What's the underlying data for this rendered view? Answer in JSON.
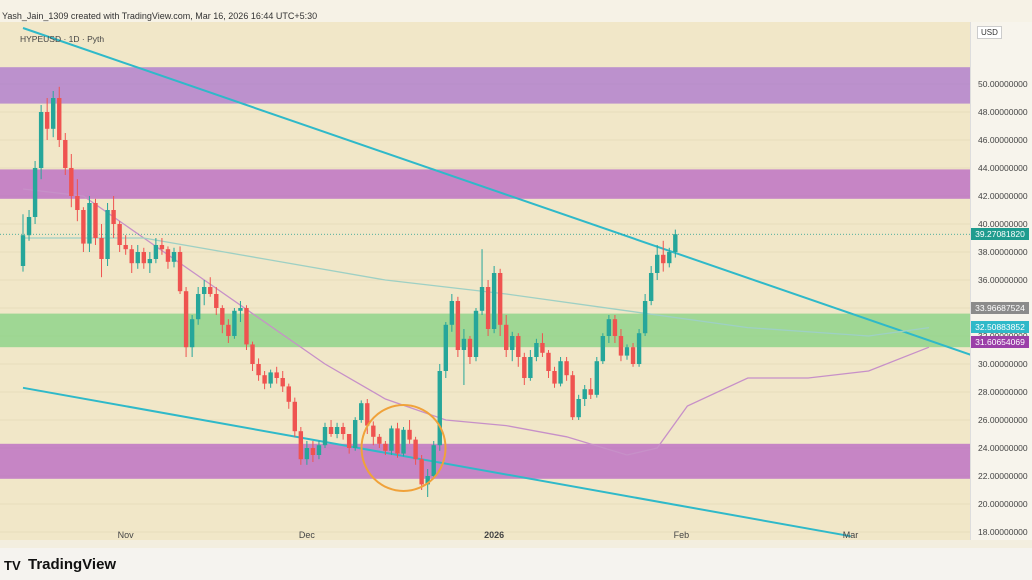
{
  "header": {
    "credit": "Yash_Jain_1309 created with TradingView.com, Mar 16, 2026 16:44 UTC+5:30"
  },
  "symbol": "HYPEUSD · 1D · Pyth",
  "currency": "USD",
  "brand": "TradingView",
  "colors": {
    "bg": "#f1e7c8",
    "up": "#26a69a",
    "down": "#ef5350",
    "purple_zone": "#a770cf",
    "green_zone": "#7fd17f",
    "trend": "#2fb9c9",
    "circle": "#f0a23a"
  },
  "chart_data": {
    "type": "candlestick",
    "title": "",
    "ylim": [
      17,
      52
    ],
    "y_ticks": [
      18,
      20,
      22,
      24,
      26,
      28,
      30,
      32,
      34,
      36,
      38,
      40,
      42,
      44,
      46,
      48,
      50
    ],
    "y_tick_labels": [
      "18.00000000",
      "20.00000000",
      "22.00000000",
      "24.00000000",
      "26.00000000",
      "28.00000000",
      "30.00000000",
      "32.00000000",
      "34.00000000",
      "36.00000000",
      "38.00000000",
      "40.00000000",
      "42.00000000",
      "44.00000000",
      "46.00000000",
      "48.00000000",
      "50.00000000"
    ],
    "x_labels": [
      {
        "label": "Nov",
        "day": 17
      },
      {
        "label": "Dec",
        "day": 47
      },
      {
        "label": "2026",
        "day": 78
      },
      {
        "label": "Feb",
        "day": 109
      },
      {
        "label": "Mar",
        "day": 137
      }
    ],
    "price_tags": [
      {
        "label": "39.27081820",
        "value": 39.27,
        "color": "#1f9c8f"
      },
      {
        "label": "33.96687524",
        "value": 33.97,
        "color": "#8b8b8b"
      },
      {
        "label": "32.50883852",
        "value": 32.51,
        "color": "#2fb9c9"
      },
      {
        "label": "31.60654069",
        "value": 31.61,
        "color": "#9b3fa8"
      }
    ],
    "zones": [
      {
        "kind": "resistance",
        "low": 48.6,
        "high": 51.2,
        "color": "#a770cf"
      },
      {
        "kind": "resistance",
        "low": 41.8,
        "high": 43.9,
        "color": "#b65fc4"
      },
      {
        "kind": "support",
        "low": 31.2,
        "high": 33.6,
        "color": "#7fd17f"
      },
      {
        "kind": "support",
        "low": 21.8,
        "high": 24.3,
        "color": "#b65fc4"
      }
    ],
    "trendlines": [
      {
        "from": [
          0,
          54
        ],
        "to": [
          160,
          30.2
        ]
      },
      {
        "from": [
          0,
          28.3
        ],
        "to": [
          137,
          17.7
        ]
      }
    ],
    "moving_averages": [
      {
        "color": "#c790c8",
        "points": [
          [
            0,
            42.5
          ],
          [
            10,
            42
          ],
          [
            20,
            39
          ],
          [
            30,
            36
          ],
          [
            40,
            33
          ],
          [
            50,
            30
          ],
          [
            60,
            27.5
          ],
          [
            70,
            26
          ],
          [
            80,
            25.6
          ],
          [
            90,
            24.8
          ],
          [
            100,
            23.5
          ],
          [
            105,
            24
          ],
          [
            110,
            27
          ],
          [
            120,
            29
          ],
          [
            130,
            29
          ],
          [
            140,
            29.5
          ],
          [
            150,
            31.2
          ]
        ]
      },
      {
        "color": "#9ed0c4",
        "points": [
          [
            0,
            39
          ],
          [
            20,
            39
          ],
          [
            40,
            37.5
          ],
          [
            60,
            36
          ],
          [
            80,
            35
          ],
          [
            100,
            33.8
          ],
          [
            120,
            32.6
          ],
          [
            140,
            32
          ],
          [
            150,
            32.6
          ]
        ]
      }
    ],
    "circle": {
      "day": 63,
      "value": 24
    },
    "candles": [
      [
        37,
        40.7,
        36.6,
        39.2
      ],
      [
        39.2,
        41,
        38.8,
        40.5
      ],
      [
        40.5,
        44.5,
        40,
        44
      ],
      [
        44,
        48.5,
        43.2,
        48
      ],
      [
        48,
        49,
        46,
        46.8
      ],
      [
        46.8,
        49.5,
        46.2,
        49
      ],
      [
        49,
        49.8,
        45.5,
        46
      ],
      [
        46,
        46.5,
        43.5,
        44
      ],
      [
        44,
        45,
        41.2,
        42
      ],
      [
        42,
        43.2,
        40.2,
        41
      ],
      [
        41,
        41.2,
        38,
        38.6
      ],
      [
        38.6,
        42,
        38,
        41.5
      ],
      [
        41.5,
        41.8,
        38.5,
        39
      ],
      [
        39,
        40,
        36.2,
        37.5
      ],
      [
        37.5,
        41.5,
        37,
        41
      ],
      [
        41,
        42,
        39,
        40
      ],
      [
        40,
        40.2,
        38,
        38.5
      ],
      [
        38.5,
        39.2,
        37.8,
        38.2
      ],
      [
        38.2,
        38.5,
        36.5,
        37.2
      ],
      [
        37.2,
        38.5,
        36.8,
        38
      ],
      [
        38,
        38.3,
        36.8,
        37.2
      ],
      [
        37.2,
        38,
        36.5,
        37.5
      ],
      [
        37.5,
        39,
        37.2,
        38.5
      ],
      [
        38.5,
        39,
        37.8,
        38.2
      ],
      [
        38.2,
        38.4,
        36.8,
        37.3
      ],
      [
        37.3,
        38.3,
        36.9,
        38
      ],
      [
        38,
        38.4,
        35,
        35.2
      ],
      [
        35.2,
        35.5,
        30.5,
        31.2
      ],
      [
        31.2,
        33.5,
        30.5,
        33.2
      ],
      [
        33.2,
        35.5,
        32.8,
        35
      ],
      [
        35,
        36,
        34.2,
        35.5
      ],
      [
        35.5,
        36.2,
        34.8,
        35
      ],
      [
        35,
        35.5,
        33.5,
        34
      ],
      [
        34,
        34.2,
        32.2,
        32.8
      ],
      [
        32.8,
        33.2,
        31.5,
        32
      ],
      [
        32,
        34,
        31.8,
        33.8
      ],
      [
        33.8,
        34.5,
        33,
        34
      ],
      [
        34,
        34.2,
        31,
        31.4
      ],
      [
        31.4,
        31.6,
        29.5,
        30
      ],
      [
        30,
        30.4,
        28.8,
        29.2
      ],
      [
        29.2,
        29.5,
        28.2,
        28.6
      ],
      [
        28.6,
        29.6,
        28.3,
        29.4
      ],
      [
        29.4,
        29.8,
        28.6,
        29
      ],
      [
        29,
        29.5,
        28,
        28.4
      ],
      [
        28.4,
        28.6,
        26.8,
        27.3
      ],
      [
        27.3,
        27.6,
        24.8,
        25.2
      ],
      [
        25.2,
        25.5,
        22.8,
        23.2
      ],
      [
        23.2,
        24.5,
        22.8,
        24
      ],
      [
        24,
        24.5,
        23,
        23.5
      ],
      [
        23.5,
        24.5,
        23.2,
        24.2
      ],
      [
        24.2,
        25.8,
        24,
        25.5
      ],
      [
        25.5,
        26,
        24.8,
        25
      ],
      [
        25,
        25.8,
        24.7,
        25.5
      ],
      [
        25.5,
        25.8,
        24.6,
        25
      ],
      [
        25,
        25,
        23.6,
        24
      ],
      [
        24,
        26.2,
        23.8,
        26
      ],
      [
        26,
        27.4,
        25.8,
        27.2
      ],
      [
        27.2,
        27.5,
        25,
        25.6
      ],
      [
        25.6,
        25.9,
        24.2,
        24.8
      ],
      [
        24.8,
        25,
        24,
        24.3
      ],
      [
        24.3,
        24.5,
        23.5,
        23.8
      ],
      [
        23.8,
        25.6,
        23.5,
        25.4
      ],
      [
        25.4,
        25.8,
        23.3,
        23.6
      ],
      [
        23.6,
        25.5,
        23.4,
        25.3
      ],
      [
        25.3,
        26,
        24.3,
        24.6
      ],
      [
        24.6,
        24.8,
        22.8,
        23.2
      ],
      [
        23.2,
        23.5,
        21,
        21.4
      ],
      [
        21.4,
        22.5,
        20.5,
        22
      ],
      [
        22,
        24.5,
        21.8,
        24.2
      ],
      [
        24.2,
        30,
        23.8,
        29.5
      ],
      [
        29.5,
        33,
        29,
        32.8
      ],
      [
        32.8,
        35,
        32.3,
        34.5
      ],
      [
        34.5,
        34.8,
        30.5,
        31
      ],
      [
        31,
        32.5,
        28.5,
        31.8
      ],
      [
        31.8,
        32,
        30,
        30.5
      ],
      [
        30.5,
        34,
        30.2,
        33.8
      ],
      [
        33.8,
        38.2,
        33.5,
        35.5
      ],
      [
        35.5,
        36,
        32,
        32.5
      ],
      [
        32.5,
        37,
        32.2,
        36.5
      ],
      [
        36.5,
        36.8,
        32,
        32.8
      ],
      [
        32.8,
        33.5,
        30.5,
        31
      ],
      [
        31,
        32.3,
        30.2,
        32
      ],
      [
        32,
        32.2,
        29.8,
        30.5
      ],
      [
        30.5,
        30.8,
        28.5,
        29
      ],
      [
        29,
        31,
        28.8,
        30.5
      ],
      [
        30.5,
        31.8,
        30.2,
        31.5
      ],
      [
        31.5,
        32.2,
        30.5,
        30.8
      ],
      [
        30.8,
        31,
        29,
        29.5
      ],
      [
        29.5,
        29.8,
        28.3,
        28.6
      ],
      [
        28.6,
        30.5,
        28.4,
        30.2
      ],
      [
        30.2,
        30.5,
        28.8,
        29.2
      ],
      [
        29.2,
        29.5,
        26,
        26.2
      ],
      [
        26.2,
        27.8,
        26,
        27.5
      ],
      [
        27.5,
        28.5,
        27,
        28.2
      ],
      [
        28.2,
        29,
        27.5,
        27.8
      ],
      [
        27.8,
        30.5,
        27.6,
        30.2
      ],
      [
        30.2,
        32.2,
        30,
        32
      ],
      [
        32,
        33.5,
        31.5,
        33.2
      ],
      [
        33.2,
        33.5,
        31.5,
        32
      ],
      [
        32,
        32.5,
        30.2,
        30.6
      ],
      [
        30.6,
        31.4,
        30.3,
        31.2
      ],
      [
        31.2,
        31.5,
        29.8,
        30
      ],
      [
        30,
        32.5,
        29.8,
        32.2
      ],
      [
        32.2,
        35,
        32,
        34.5
      ],
      [
        34.5,
        37,
        34.2,
        36.5
      ],
      [
        36.5,
        38.5,
        36,
        37.8
      ],
      [
        37.8,
        38.8,
        36.6,
        37.2
      ],
      [
        37.2,
        38.3,
        36.9,
        38
      ],
      [
        38,
        39.6,
        37.6,
        39.27
      ]
    ]
  }
}
